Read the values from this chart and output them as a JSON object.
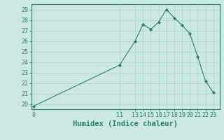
{
  "x": [
    0,
    11,
    13,
    14,
    15,
    16,
    17,
    18,
    19,
    20,
    21,
    22,
    23
  ],
  "y": [
    19.8,
    23.7,
    26.0,
    27.6,
    27.1,
    27.8,
    29.0,
    28.2,
    27.5,
    26.7,
    24.5,
    22.2,
    21.1
  ],
  "line_color": "#2d7d6e",
  "marker_color": "#2d7d6e",
  "bg_color": "#cce8e4",
  "grid_color": "#b0d4cf",
  "xlabel": "Humidex (Indice chaleur)",
  "ylabel_ticks": [
    20,
    21,
    22,
    23,
    24,
    25,
    26,
    27,
    28,
    29
  ],
  "xticks": [
    0,
    11,
    13,
    14,
    15,
    16,
    17,
    18,
    19,
    20,
    21,
    22,
    23
  ],
  "xlim": [
    -0.3,
    23.8
  ],
  "ylim": [
    19.5,
    29.5
  ],
  "xlabel_fontsize": 7.5,
  "tick_fontsize": 6.0,
  "tick_color": "#2d7d6e",
  "axis_color": "#2d7d6e"
}
